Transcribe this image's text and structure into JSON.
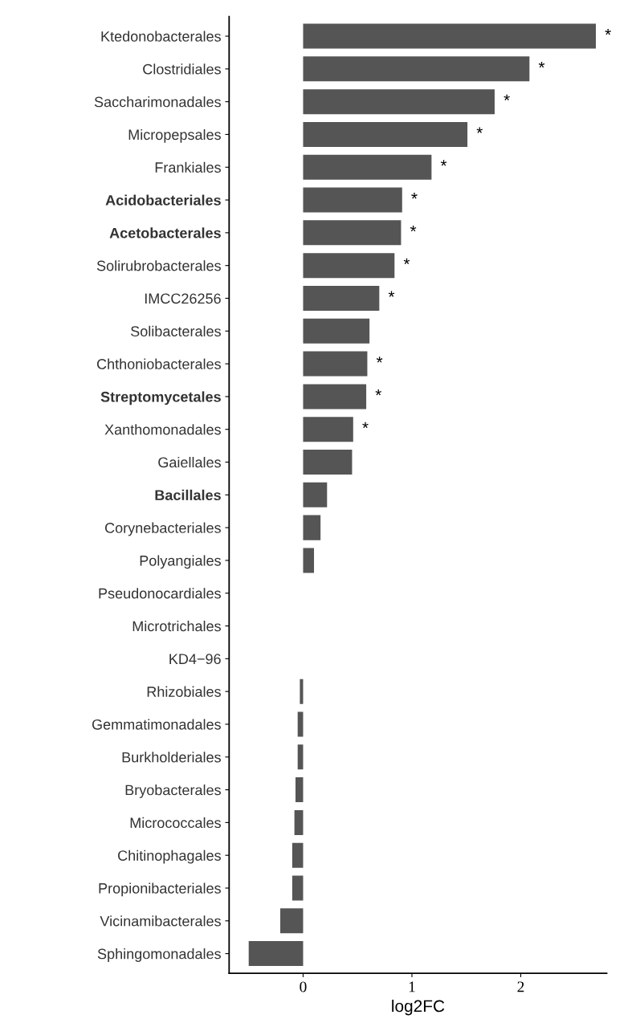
{
  "chart_data": {
    "type": "bar",
    "orientation": "horizontal",
    "xlabel": "log2FC",
    "categories": [
      "Ktedonobacterales",
      "Clostridiales",
      "Saccharimonadales",
      "Micropepsales",
      "Frankiales",
      "Acidobacteriales",
      "Acetobacterales",
      "Solirubrobacterales",
      "IMCC26256",
      "Solibacterales",
      "Chthoniobacterales",
      "Streptomycetales",
      "Xanthomonadales",
      "Gaiellales",
      "Bacillales",
      "Corynebacteriales",
      "Polyangiales",
      "Pseudonocardiales",
      "Microtrichales",
      "KD4−96",
      "Rhizobiales",
      "Gemmatimonadales",
      "Burkholderiales",
      "Bryobacterales",
      "Micrococcales",
      "Chitinophagales",
      "Propionibacteriales",
      "Vicinamibacterales",
      "Sphingomonadales"
    ],
    "values": [
      2.69,
      2.08,
      1.76,
      1.51,
      1.18,
      0.91,
      0.9,
      0.84,
      0.7,
      0.61,
      0.59,
      0.58,
      0.46,
      0.45,
      0.22,
      0.16,
      0.1,
      0,
      0,
      0,
      -0.03,
      -0.05,
      -0.05,
      -0.07,
      -0.08,
      -0.1,
      -0.1,
      -0.21,
      -0.5
    ],
    "color": "#555555",
    "xlim": [
      -0.68,
      2.79
    ],
    "xticks": [
      0,
      1,
      2
    ],
    "grid": false,
    "legend": false,
    "annotations": [
      {
        "text": "*",
        "x": 2.69,
        "y": "Ktedonobacterales"
      },
      {
        "text": "*",
        "x": 2.08,
        "y": "Clostridiales"
      },
      {
        "text": "*",
        "x": 1.76,
        "y": "Saccharimonadales"
      },
      {
        "text": "*",
        "x": 1.51,
        "y": "Micropepsales"
      },
      {
        "text": "*",
        "x": 1.18,
        "y": "Frankiales"
      },
      {
        "text": "*",
        "x": 0.91,
        "y": "Acidobacteriales"
      },
      {
        "text": "*",
        "x": 0.9,
        "y": "Acetobacterales"
      },
      {
        "text": "*",
        "x": 0.84,
        "y": "Solirubrobacterales"
      },
      {
        "text": "*",
        "x": 0.7,
        "y": "IMCC26256"
      },
      {
        "text": "*",
        "x": 0.59,
        "y": "Chthoniobacterales"
      },
      {
        "text": "*",
        "x": 0.58,
        "y": "Streptomycetales"
      },
      {
        "text": "*",
        "x": 0.46,
        "y": "Xanthomonadales"
      }
    ]
  }
}
